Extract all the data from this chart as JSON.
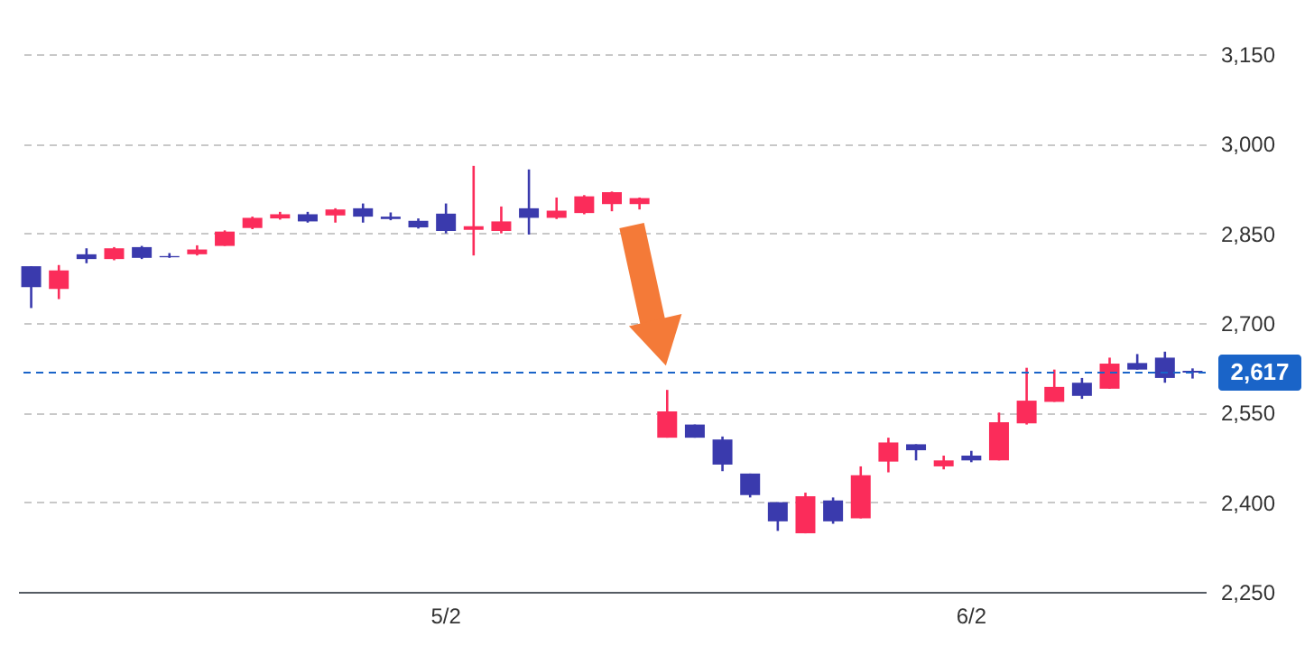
{
  "chart_data": {
    "type": "candlestick",
    "categories": [
      null,
      null,
      null,
      null,
      null,
      null,
      null,
      null,
      null,
      null,
      null,
      null,
      null,
      null,
      null,
      "5/2",
      null,
      null,
      null,
      null,
      null,
      null,
      null,
      null,
      null,
      null,
      null,
      null,
      null,
      null,
      null,
      null,
      null,
      null,
      "6/2",
      null,
      null,
      null,
      null,
      null,
      null,
      null,
      null
    ],
    "ohlc": [
      [
        2795,
        2795,
        2725,
        2760
      ],
      [
        2757,
        2797,
        2740,
        2788
      ],
      [
        2815,
        2825,
        2800,
        2807
      ],
      [
        2807,
        2827,
        2805,
        2825
      ],
      [
        2827,
        2829,
        2807,
        2809
      ],
      [
        2812,
        2817,
        2809,
        2810
      ],
      [
        2815,
        2830,
        2813,
        2823
      ],
      [
        2829,
        2855,
        2829,
        2853
      ],
      [
        2859,
        2878,
        2857,
        2876
      ],
      [
        2875,
        2886,
        2873,
        2882
      ],
      [
        2882,
        2886,
        2868,
        2870
      ],
      [
        2880,
        2892,
        2868,
        2890
      ],
      [
        2892,
        2900,
        2868,
        2878
      ],
      [
        2878,
        2885,
        2872,
        2874
      ],
      [
        2871,
        2875,
        2858,
        2860
      ],
      [
        2883,
        2900,
        2850,
        2854
      ],
      [
        2856,
        2963,
        2813,
        2862
      ],
      [
        2854,
        2895,
        2850,
        2870
      ],
      [
        2892,
        2957,
        2848,
        2876
      ],
      [
        2876,
        2910,
        2874,
        2888
      ],
      [
        2884,
        2914,
        2882,
        2912
      ],
      [
        2899,
        2920,
        2887,
        2919
      ],
      [
        2899,
        2910,
        2890,
        2909
      ],
      [
        2508,
        2588,
        2508,
        2552
      ],
      [
        2530,
        2530,
        2508,
        2508
      ],
      [
        2505,
        2510,
        2452,
        2463
      ],
      [
        2448,
        2448,
        2408,
        2412
      ],
      [
        2400,
        2400,
        2352,
        2368
      ],
      [
        2348,
        2416,
        2348,
        2410
      ],
      [
        2403,
        2408,
        2364,
        2368
      ],
      [
        2373,
        2460,
        2373,
        2445
      ],
      [
        2468,
        2508,
        2450,
        2500
      ],
      [
        2497,
        2497,
        2470,
        2487
      ],
      [
        2460,
        2478,
        2455,
        2470
      ],
      [
        2478,
        2486,
        2467,
        2470
      ],
      [
        2470,
        2550,
        2470,
        2534
      ],
      [
        2532,
        2625,
        2530,
        2570
      ],
      [
        2568,
        2622,
        2568,
        2593
      ],
      [
        2600,
        2608,
        2573,
        2578
      ],
      [
        2590,
        2642,
        2590,
        2632
      ],
      [
        2633,
        2648,
        2622,
        2622
      ],
      [
        2642,
        2652,
        2600,
        2608
      ],
      [
        2620,
        2624,
        2607,
        2617
      ]
    ],
    "colors": [
      "#3a3aad",
      "#fb2c5a",
      "#3a3aad",
      "#fb2c5a",
      "#3a3aad",
      "#3a3aad",
      "#fb2c5a",
      "#fb2c5a",
      "#fb2c5a",
      "#fb2c5a",
      "#3a3aad",
      "#fb2c5a",
      "#3a3aad",
      "#3a3aad",
      "#3a3aad",
      "#3a3aad",
      "#fb2c5a",
      "#fb2c5a",
      "#3a3aad",
      "#fb2c5a",
      "#fb2c5a",
      "#fb2c5a",
      "#fb2c5a",
      "#fb2c5a",
      "#3a3aad",
      "#3a3aad",
      "#3a3aad",
      "#3a3aad",
      "#fb2c5a",
      "#3a3aad",
      "#fb2c5a",
      "#fb2c5a",
      "#3a3aad",
      "#fb2c5a",
      "#3a3aad",
      "#fb2c5a",
      "#fb2c5a",
      "#fb2c5a",
      "#3a3aad",
      "#fb2c5a",
      "#3a3aad",
      "#3a3aad",
      "#3a3aad"
    ],
    "ylim": [
      2250,
      3150
    ],
    "yticks": [
      {
        "value": 2250,
        "label": "2,250"
      },
      {
        "value": 2400,
        "label": "2,400"
      },
      {
        "value": 2550,
        "label": "2,550"
      },
      {
        "value": 2700,
        "label": "2,700"
      },
      {
        "value": 2850,
        "label": "2,850"
      },
      {
        "value": 3000,
        "label": "3,000"
      },
      {
        "value": 3150,
        "label": "3,150"
      }
    ],
    "grid": "y",
    "ref_lines": [
      {
        "axis": "y",
        "value": 2617,
        "label": "2,617",
        "color": "#1a64c8",
        "line_style": "dashed"
      }
    ]
  }
}
